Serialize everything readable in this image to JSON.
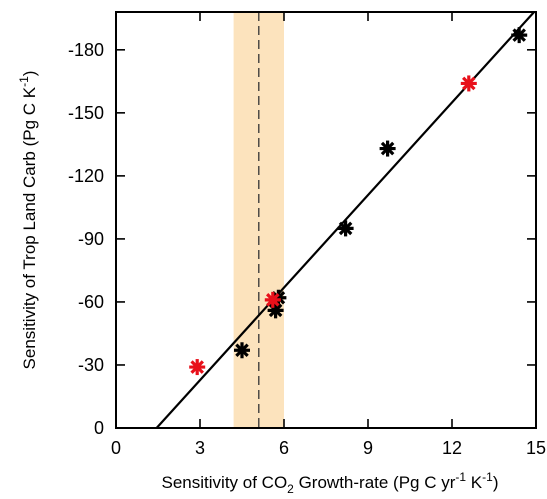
{
  "chart_data": {
    "type": "scatter",
    "xlabel": {
      "prefix": "Sensitivity of CO",
      "sub": "2",
      "middle": " Growth-rate (Pg C yr",
      "sup1": "-1",
      "middle2": " K",
      "sup2": "-1",
      "suffix": ")"
    },
    "ylabel": {
      "prefix": "Sensitivity of Trop Land Carb (Pg C K",
      "sup": "-1",
      "suffix": ")"
    },
    "xlim": [
      0,
      15
    ],
    "ylim": [
      0,
      -198
    ],
    "xticks": [
      0,
      3,
      6,
      9,
      12,
      15
    ],
    "xtick_labels": [
      "0",
      "3",
      "6",
      "9",
      "12",
      "15"
    ],
    "yticks": [
      0,
      -30,
      -60,
      -90,
      -120,
      -150,
      -180
    ],
    "ytick_labels": [
      "0",
      "-30",
      "-60",
      "-90",
      "-120",
      "-150",
      "-180"
    ],
    "series": [
      {
        "color": "#000000",
        "marker": "asterisk",
        "points": [
          {
            "x": 4.5,
            "y": -37
          },
          {
            "x": 5.7,
            "y": -56
          },
          {
            "x": 5.8,
            "y": -62
          },
          {
            "x": 8.2,
            "y": -95
          },
          {
            "x": 9.7,
            "y": -133
          },
          {
            "x": 14.4,
            "y": -187
          }
        ]
      },
      {
        "color": "#e8101a",
        "marker": "asterisk",
        "points": [
          {
            "x": 2.9,
            "y": -29
          },
          {
            "x": 5.6,
            "y": -61
          },
          {
            "x": 12.6,
            "y": -164
          }
        ]
      }
    ],
    "fit_line": {
      "color": "#000000",
      "x": [
        1.45,
        15.0
      ],
      "y": [
        0,
        -199
      ]
    },
    "uncertainty_band": {
      "color": "#fce3bd",
      "x_range": [
        4.2,
        6.0
      ],
      "center": 5.1,
      "center_line_style": "dashed"
    },
    "grid": false
  }
}
